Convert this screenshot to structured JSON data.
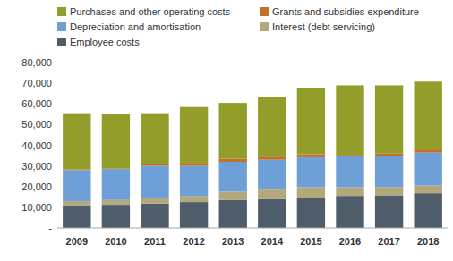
{
  "chart_data": {
    "type": "bar",
    "stacked": true,
    "grid": false,
    "categories": [
      "2009",
      "2010",
      "2011",
      "2012",
      "2013",
      "2014",
      "2015",
      "2016",
      "2017",
      "2018"
    ],
    "ylim": [
      0,
      80000
    ],
    "yticks": [
      {
        "value": 0,
        "label": "-"
      },
      {
        "value": 10000,
        "label": "10,000"
      },
      {
        "value": 20000,
        "label": "20,000"
      },
      {
        "value": 30000,
        "label": "30,000"
      },
      {
        "value": 40000,
        "label": "40,000"
      },
      {
        "value": 50000,
        "label": "50,000"
      },
      {
        "value": 60000,
        "label": "60,000"
      },
      {
        "value": 70000,
        "label": "70,000"
      },
      {
        "value": 80000,
        "label": "80,000"
      }
    ],
    "legend": "top",
    "series": [
      {
        "name": "Employee costs",
        "color": "#4f5d6b",
        "values": [
          11000,
          11200,
          11800,
          12500,
          13500,
          14000,
          14500,
          15500,
          15800,
          16800
        ]
      },
      {
        "name": "Interest (debt servicing)",
        "color": "#b3a87c",
        "values": [
          2000,
          2300,
          2700,
          3000,
          4000,
          4500,
          5200,
          4200,
          4000,
          3700
        ]
      },
      {
        "name": "Depreciation and amortisation",
        "color": "#6e9fd6",
        "values": [
          15000,
          15000,
          15600,
          14500,
          14500,
          14500,
          14500,
          15200,
          15000,
          16000
        ]
      },
      {
        "name": "Grants and subsidies expenditure",
        "color": "#c0712a",
        "values": [
          300,
          300,
          1000,
          1500,
          1500,
          1500,
          1500,
          500,
          1200,
          1500
        ]
      },
      {
        "name": "Purchases and other operating costs",
        "color": "#929d2a",
        "values": [
          27200,
          26200,
          24400,
          27000,
          27000,
          29000,
          31800,
          33600,
          33000,
          32800
        ]
      }
    ]
  }
}
